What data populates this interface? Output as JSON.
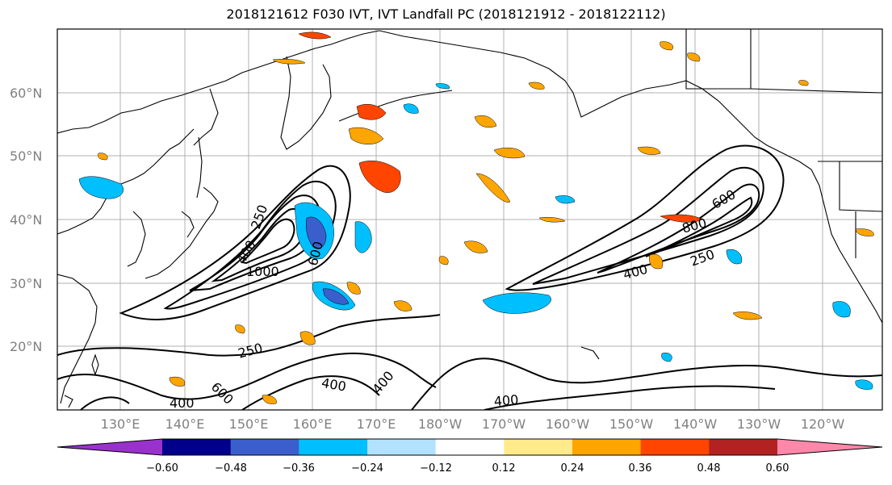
{
  "title": "2018121612 F030 IVT, IVT Landfall PC (2018121912 - 2018122112)",
  "lat_labels": [
    "60°N",
    "50°N",
    "40°N",
    "30°N",
    "20°N"
  ],
  "lon_labels": [
    "130°E",
    "140°E",
    "150°E",
    "160°E",
    "170°E",
    "180°W",
    "170°W",
    "160°W",
    "150°W",
    "140°W",
    "130°W",
    "120°W"
  ],
  "contour_labels": {
    "west": [
      "250",
      "400",
      "600",
      "1000",
      "600"
    ],
    "east": [
      "600",
      "800",
      "250",
      "400"
    ],
    "south": [
      "250",
      "400",
      "600",
      "400",
      "400",
      "400"
    ]
  },
  "colorbar": {
    "colors": [
      "#9932cc",
      "#00008b",
      "#3a5fcd",
      "#00bfff",
      "#b2e2ff",
      "#ffffff",
      "#ffeb8a",
      "#ffa500",
      "#ff4500",
      "#b22222",
      "#ff88aa"
    ],
    "tick_labels": [
      "−0.60",
      "−0.48",
      "−0.36",
      "−0.24",
      "−0.12",
      "0.12",
      "0.24",
      "0.36",
      "0.48",
      "0.60"
    ]
  }
}
